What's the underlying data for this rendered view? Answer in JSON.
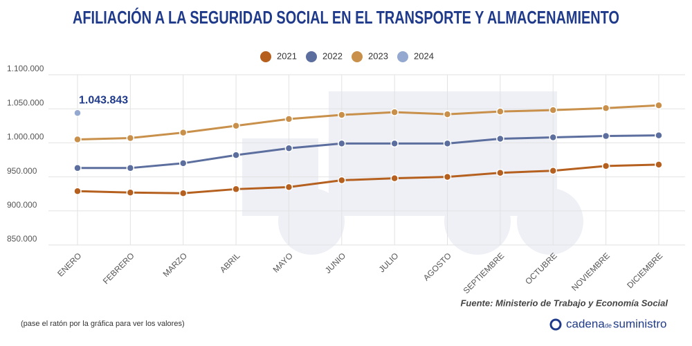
{
  "chart_data": {
    "type": "line",
    "title": "AFILIACIÓN A LA SEGURIDAD SOCIAL EN EL TRANSPORTE Y ALMACENAMIENTO",
    "categories": [
      "ENERO",
      "FEBRERO",
      "MARZO",
      "ABRIL",
      "MAYO",
      "JUNIO",
      "JULIO",
      "AGOSTO",
      "SEPTIEMBRE",
      "OCTUBRE",
      "NOVIEMBRE",
      "DICIEMBRE"
    ],
    "series": [
      {
        "name": "2021",
        "color": "#b5601f",
        "values": [
          929000,
          927000,
          926000,
          932000,
          935000,
          945000,
          948000,
          950000,
          956000,
          959000,
          966000,
          968000
        ]
      },
      {
        "name": "2022",
        "color": "#5b6e9e",
        "values": [
          963000,
          963000,
          970000,
          982000,
          992000,
          999000,
          999000,
          999000,
          1006000,
          1008000,
          1010000,
          1011000
        ]
      },
      {
        "name": "2023",
        "color": "#c8904a",
        "values": [
          1005000,
          1007000,
          1015000,
          1025000,
          1035000,
          1041000,
          1045000,
          1042000,
          1046000,
          1048000,
          1051000,
          1055000
        ]
      },
      {
        "name": "2024",
        "color": "#94a8d0",
        "values": [
          1043843,
          null,
          null,
          null,
          null,
          null,
          null,
          null,
          null,
          null,
          null,
          null
        ],
        "value_labels": [
          "1.043.843",
          null,
          null,
          null,
          null,
          null,
          null,
          null,
          null,
          null,
          null,
          null
        ]
      }
    ],
    "ylim": [
      850000,
      1100000
    ],
    "yticks": [
      {
        "value": 850000,
        "label": "850.000"
      },
      {
        "value": 900000,
        "label": "900.000"
      },
      {
        "value": 950000,
        "label": "950.000"
      },
      {
        "value": 1000000,
        "label": "1.000.000"
      },
      {
        "value": 1050000,
        "label": "1.050.000"
      },
      {
        "value": 1100000,
        "label": "1.100.000"
      }
    ],
    "grid": true,
    "legend": "top",
    "source": "Fuente: Ministerio de Trabajo y Economía Social",
    "note": "(pase el ratón por la gráfica para ver los valores)"
  },
  "logo": {
    "word1": "cadena",
    "word2": "de",
    "word3": "suministro"
  }
}
